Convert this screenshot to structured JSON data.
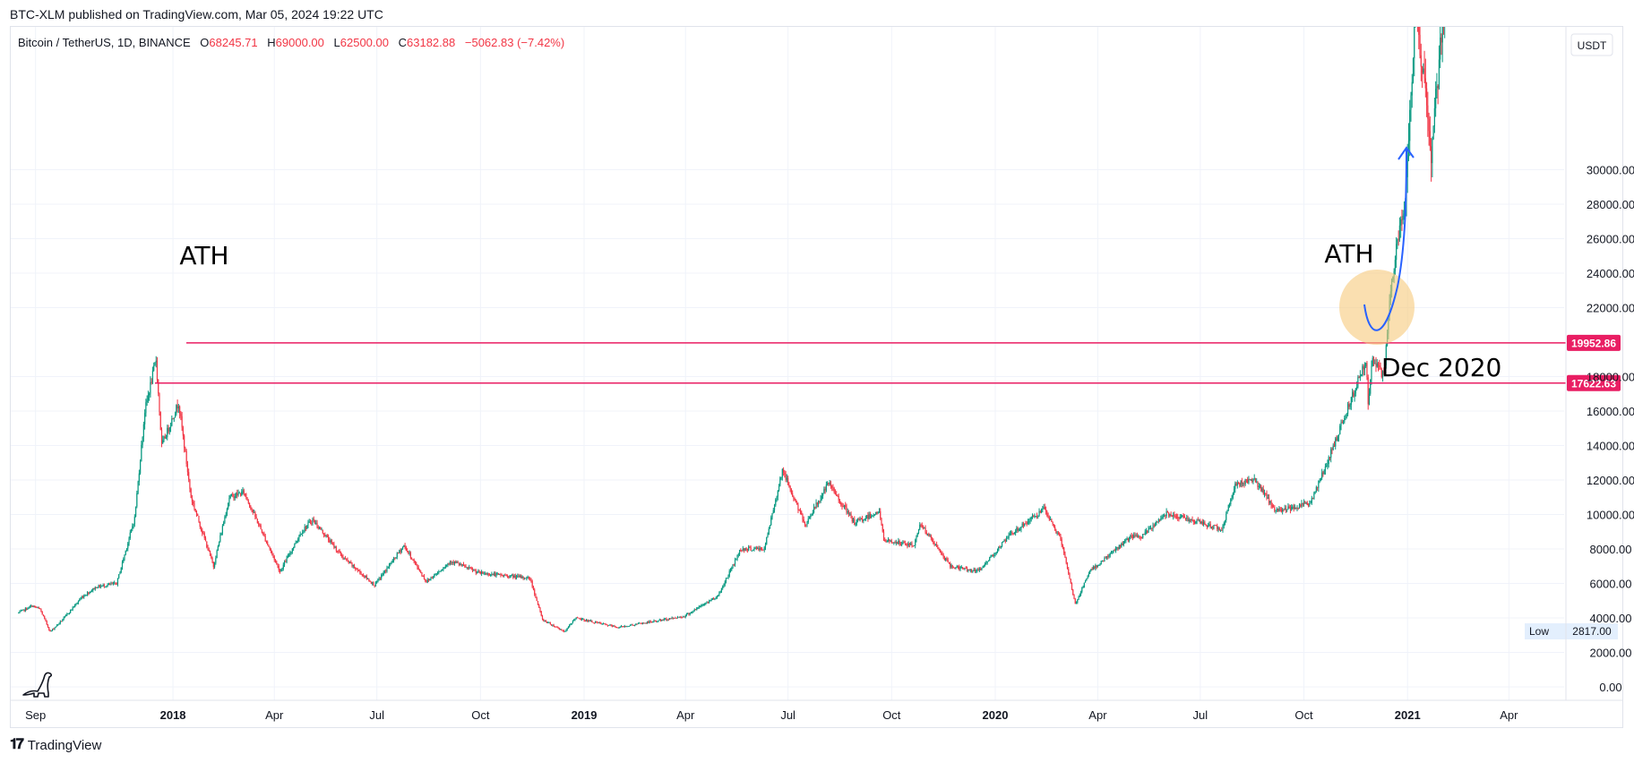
{
  "publish_line": "BTC-XLM published on TradingView.com, Mar 05, 2024 19:22 UTC",
  "legend": {
    "symbol": "Bitcoin / TetherUS, 1D, BINANCE",
    "open_label": "O",
    "open": "68245.71",
    "high_label": "H",
    "high": "69000.00",
    "low_label": "L",
    "low": "62500.00",
    "close_label": "C",
    "close": "63182.88",
    "change": "−5062.83 (−7.42%)"
  },
  "footer": {
    "brand": "TradingView"
  },
  "colors": {
    "up": "#089981",
    "down": "#f23645",
    "hline": "#e91e63",
    "arrow": "#2962ff",
    "highlight": "#f7c97c",
    "grid": "#f0f3fa"
  },
  "chart_data": {
    "type": "candlestick",
    "currency": "USDT",
    "ylim": [
      0,
      33000
    ],
    "yticks": [
      {
        "value": 0,
        "label": "0.00"
      },
      {
        "value": 2000,
        "label": "2000.00"
      },
      {
        "value": 4000,
        "label": "4000.00"
      },
      {
        "value": 6000,
        "label": "6000.00"
      },
      {
        "value": 8000,
        "label": "8000.00"
      },
      {
        "value": 10000,
        "label": "10000.00"
      },
      {
        "value": 12000,
        "label": "12000.00"
      },
      {
        "value": 14000,
        "label": "14000.00"
      },
      {
        "value": 16000,
        "label": "16000.00"
      },
      {
        "value": 18000,
        "label": "18000.00"
      },
      {
        "value": 22000,
        "label": "22000.00"
      },
      {
        "value": 24000,
        "label": "24000.00"
      },
      {
        "value": 26000,
        "label": "26000.00"
      },
      {
        "value": 28000,
        "label": "28000.00"
      },
      {
        "value": 30000,
        "label": "30000.00"
      }
    ],
    "xlim": [
      "2017-08-10",
      "2021-05-20"
    ],
    "xticks": [
      {
        "date": "2017-09-01",
        "label": "Sep",
        "bold": false
      },
      {
        "date": "2018-01-01",
        "label": "2018",
        "bold": true
      },
      {
        "date": "2018-04-01",
        "label": "Apr",
        "bold": false
      },
      {
        "date": "2018-07-01",
        "label": "Jul",
        "bold": false
      },
      {
        "date": "2018-10-01",
        "label": "Oct",
        "bold": false
      },
      {
        "date": "2019-01-01",
        "label": "2019",
        "bold": true
      },
      {
        "date": "2019-04-01",
        "label": "Apr",
        "bold": false
      },
      {
        "date": "2019-07-01",
        "label": "Jul",
        "bold": false
      },
      {
        "date": "2019-10-01",
        "label": "Oct",
        "bold": false
      },
      {
        "date": "2020-01-01",
        "label": "2020",
        "bold": true
      },
      {
        "date": "2020-04-01",
        "label": "Apr",
        "bold": false
      },
      {
        "date": "2020-07-01",
        "label": "Jul",
        "bold": false
      },
      {
        "date": "2020-10-01",
        "label": "Oct",
        "bold": false
      },
      {
        "date": "2021-01-01",
        "label": "2021",
        "bold": true
      },
      {
        "date": "2021-04-01",
        "label": "Apr",
        "bold": false
      }
    ],
    "price_path": [
      [
        "2017-08-17",
        4300
      ],
      [
        "2017-08-29",
        4700
      ],
      [
        "2017-09-05",
        4500
      ],
      [
        "2017-09-14",
        3200
      ],
      [
        "2017-09-25",
        3900
      ],
      [
        "2017-10-12",
        5200
      ],
      [
        "2017-10-25",
        5800
      ],
      [
        "2017-11-12",
        6000
      ],
      [
        "2017-11-28",
        9800
      ],
      [
        "2017-12-07",
        16000
      ],
      [
        "2017-12-17",
        19000
      ],
      [
        "2017-12-22",
        14000
      ],
      [
        "2018-01-06",
        16500
      ],
      [
        "2018-01-17",
        11000
      ],
      [
        "2018-02-06",
        7000
      ],
      [
        "2018-02-20",
        11000
      ],
      [
        "2018-03-05",
        11300
      ],
      [
        "2018-04-06",
        6700
      ],
      [
        "2018-04-25",
        9000
      ],
      [
        "2018-05-05",
        9700
      ],
      [
        "2018-06-01",
        7500
      ],
      [
        "2018-06-29",
        5900
      ],
      [
        "2018-07-25",
        8200
      ],
      [
        "2018-08-14",
        6100
      ],
      [
        "2018-09-05",
        7300
      ],
      [
        "2018-09-30",
        6600
      ],
      [
        "2018-10-31",
        6400
      ],
      [
        "2018-11-14",
        6300
      ],
      [
        "2018-11-25",
        3900
      ],
      [
        "2018-12-15",
        3200
      ],
      [
        "2018-12-24",
        4000
      ],
      [
        "2019-01-31",
        3450
      ],
      [
        "2019-03-31",
        4100
      ],
      [
        "2019-04-30",
        5300
      ],
      [
        "2019-05-20",
        8000
      ],
      [
        "2019-06-10",
        8000
      ],
      [
        "2019-06-26",
        12600
      ],
      [
        "2019-07-16",
        9400
      ],
      [
        "2019-08-06",
        11800
      ],
      [
        "2019-08-29",
        9500
      ],
      [
        "2019-09-20",
        10200
      ],
      [
        "2019-09-24",
        8500
      ],
      [
        "2019-10-21",
        8200
      ],
      [
        "2019-10-26",
        9500
      ],
      [
        "2019-11-22",
        7000
      ],
      [
        "2019-12-17",
        6700
      ],
      [
        "2020-01-14",
        8800
      ],
      [
        "2020-02-13",
        10300
      ],
      [
        "2020-02-28",
        8600
      ],
      [
        "2020-03-12",
        4800
      ],
      [
        "2020-03-25",
        6700
      ],
      [
        "2020-04-30",
        8700
      ],
      [
        "2020-05-10",
        8700
      ],
      [
        "2020-06-01",
        10100
      ],
      [
        "2020-07-20",
        9150
      ],
      [
        "2020-08-01",
        11700
      ],
      [
        "2020-08-17",
        12100
      ],
      [
        "2020-09-06",
        10200
      ],
      [
        "2020-10-07",
        10700
      ],
      [
        "2020-10-21",
        12900
      ],
      [
        "2020-11-05",
        15500
      ],
      [
        "2020-11-25",
        19000
      ],
      [
        "2020-11-27",
        16500
      ],
      [
        "2020-12-01",
        19000
      ],
      [
        "2020-12-11",
        18000
      ],
      [
        "2020-12-17",
        23000
      ],
      [
        "2020-12-31",
        29000
      ],
      [
        "2021-01-08",
        40000
      ],
      [
        "2021-01-22",
        31000
      ],
      [
        "2021-02-08",
        44000
      ]
    ],
    "price_lines": [
      {
        "value": 19952.86,
        "label": "19952.86"
      },
      {
        "value": 17622.63,
        "label": "17622.63"
      }
    ],
    "low_marker": {
      "label": "Low",
      "value": "2817.00"
    },
    "annotations": [
      {
        "text": "ATH",
        "near_date": "2017-12-17"
      },
      {
        "text": "ATH",
        "near_date": "2020-11-30"
      },
      {
        "text": "Dec 2020",
        "near_date": "2020-12-15"
      }
    ]
  }
}
